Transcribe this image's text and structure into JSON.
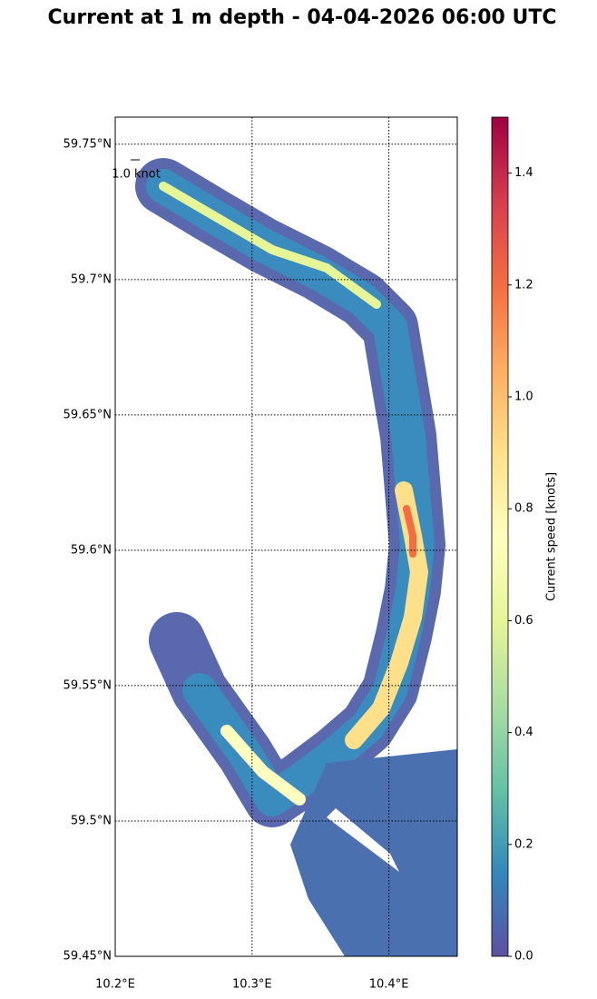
{
  "chart_data": {
    "type": "map",
    "title": "Current at 1 m depth - 04-04-2026 06:00 UTC",
    "xlim": [
      10.2,
      10.45
    ],
    "ylim": [
      59.45,
      59.76
    ],
    "xticks": [
      {
        "value": 10.2,
        "label": "10.2°E"
      },
      {
        "value": 10.3,
        "label": "10.3°E"
      },
      {
        "value": 10.4,
        "label": "10.4°E"
      }
    ],
    "yticks": [
      {
        "value": 59.45,
        "label": "59.45°N"
      },
      {
        "value": 59.5,
        "label": "59.5°N"
      },
      {
        "value": 59.55,
        "label": "59.55°N"
      },
      {
        "value": 59.6,
        "label": "59.6°N"
      },
      {
        "value": 59.65,
        "label": "59.65°N"
      },
      {
        "value": 59.7,
        "label": "59.7°N"
      },
      {
        "value": 59.75,
        "label": "59.75°N"
      }
    ],
    "grid": true,
    "quiver_key": "1.0 knot",
    "colorbar": {
      "label": "Current speed [knots]",
      "clim": [
        0,
        1.5
      ],
      "ticks": [
        {
          "value": 0,
          "label": "0.0"
        },
        {
          "value": 0.2,
          "label": "0.2"
        },
        {
          "value": 0.4,
          "label": "0.4"
        },
        {
          "value": 0.6,
          "label": "0.6"
        },
        {
          "value": 0.8,
          "label": "0.8"
        },
        {
          "value": 1.0,
          "label": "1.0"
        },
        {
          "value": 1.2,
          "label": "1.2"
        },
        {
          "value": 1.4,
          "label": "1.4"
        }
      ],
      "colormap": [
        "#5e4fa2",
        "#3288bd",
        "#66c2a5",
        "#abdda4",
        "#e6f598",
        "#ffffbf",
        "#fee08b",
        "#fdae61",
        "#f46d43",
        "#d53e4f",
        "#9e0142"
      ]
    }
  }
}
